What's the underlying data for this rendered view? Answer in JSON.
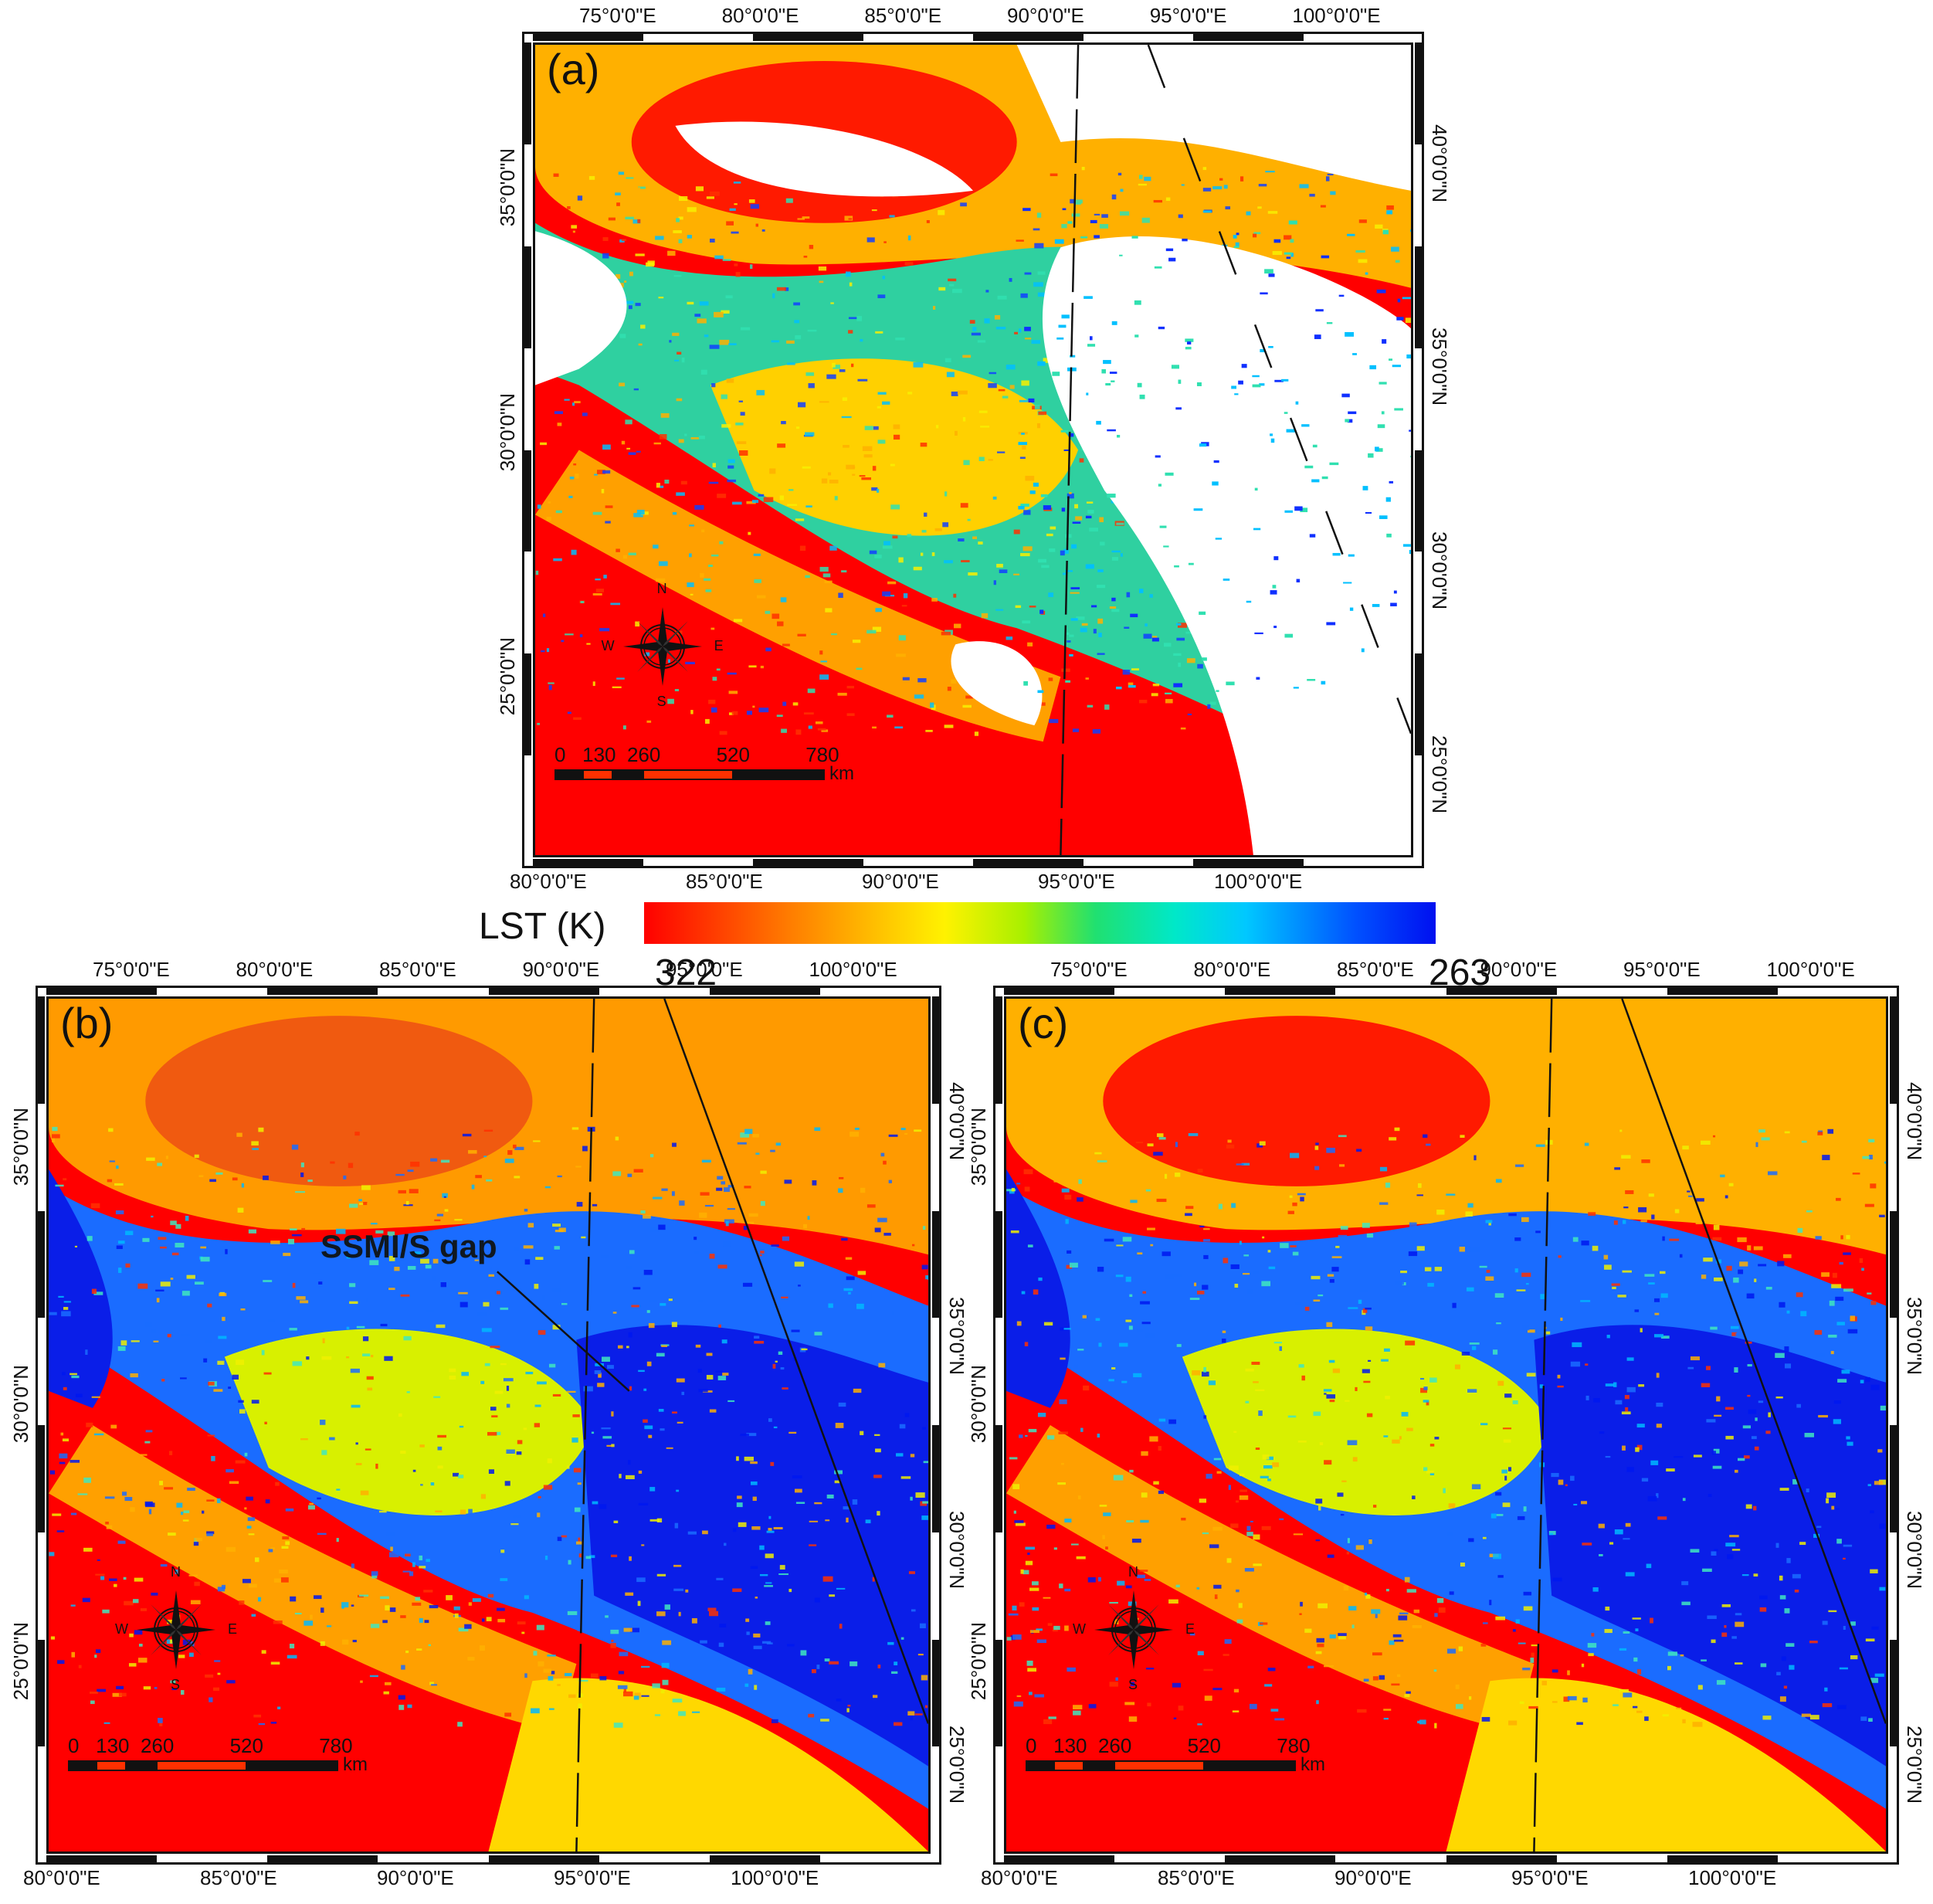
{
  "legend": {
    "title": "LST (K)",
    "max_label": "322",
    "min_label": "263",
    "colors": [
      "#ff0000",
      "#ff7a00",
      "#fff200",
      "#20e070",
      "#00c8ff",
      "#0010f0"
    ]
  },
  "lon_top_labels": [
    "75°0'0\"E",
    "80°0'0\"E",
    "85°0'0\"E",
    "90°0'0\"E",
    "95°0'0\"E",
    "100°0'0\"E"
  ],
  "lon_bottom_labels": [
    "80°0'0\"E",
    "85°0'0\"E",
    "90°0'0\"E",
    "95°0'0\"E",
    "100°0'0\"E"
  ],
  "lat_left_labels": [
    "35°0'0\"N",
    "30°0'0\"N",
    "25°0'0\"N"
  ],
  "lat_right_labels": [
    "40°0'0\"N",
    "35°0'0\"N",
    "30°0'0\"N",
    "25°0'0\"N"
  ],
  "compass": {
    "n": "N",
    "s": "S",
    "e": "E",
    "w": "W"
  },
  "scale": {
    "ticks": "0   130  260          520          780",
    "unit": "km"
  },
  "panels": [
    {
      "id": "a",
      "label": "(a)"
    },
    {
      "id": "b",
      "label": "(b)",
      "annotation": "SSMI/S gap"
    },
    {
      "id": "c",
      "label": "(c)"
    }
  ]
}
